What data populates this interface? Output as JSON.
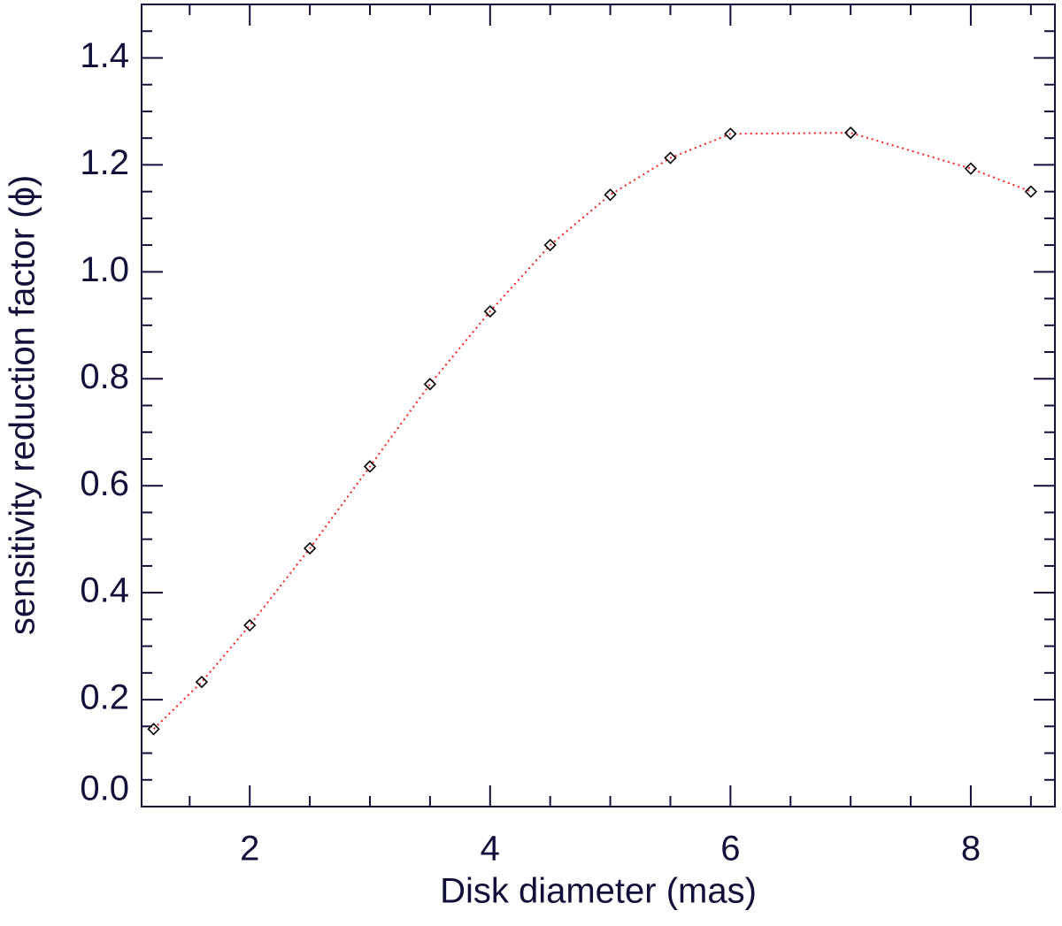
{
  "chart_data": {
    "type": "line",
    "x_label": "Disk diameter (mas)",
    "y_label": "sensitivity reduction factor (ϕ)",
    "x": [
      1.2,
      1.6,
      2.0,
      2.5,
      3.0,
      3.5,
      4.0,
      4.5,
      5.0,
      5.5,
      6.0,
      7.0,
      8.0,
      8.5
    ],
    "series": [
      {
        "color": "#ff2020",
        "values": [
          0.145,
          0.233,
          0.339,
          0.483,
          0.636,
          0.79,
          0.926,
          1.05,
          1.144,
          1.213,
          1.258,
          1.26,
          1.193,
          1.15
        ]
      }
    ],
    "xlim": [
      1.1,
      8.7
    ],
    "ylim": [
      0,
      1.5
    ],
    "xticks": [
      2,
      4,
      6,
      8
    ],
    "yticks": [
      {
        "value": 0,
        "label": "0.0"
      },
      0.2,
      0.4,
      0.6,
      0.8,
      {
        "value": 1,
        "label": "1.0"
      },
      1.2,
      1.4
    ],
    "xminorticks": [
      1.5,
      2.5,
      3,
      3.5,
      4.5,
      5,
      5.5,
      6.5,
      7,
      7.5,
      8.5
    ],
    "yminorticks": [
      0.05,
      0.1,
      0.15,
      0.25,
      0.3,
      0.35,
      0.45,
      0.5,
      0.55,
      0.65,
      0.7,
      0.75,
      0.85,
      0.9,
      0.95,
      1.05,
      1.1,
      1.15,
      1.25,
      1.3,
      1.35,
      1.45
    ]
  }
}
